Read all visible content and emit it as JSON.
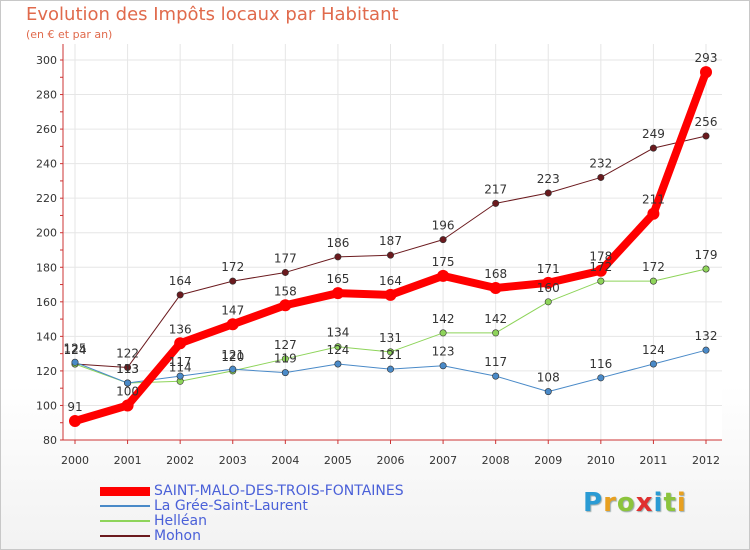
{
  "title": "Evolution des Impôts locaux par Habitant",
  "subtitle": "(en € et par an)",
  "logo": {
    "text": "Proxiti",
    "letter_colors": [
      "#2a9bd4",
      "#e8a020",
      "#8cc43c",
      "#e03030",
      "#2a9bd4",
      "#8cc43c",
      "#e8a020"
    ]
  },
  "chart_data": {
    "type": "line",
    "title": "Evolution des Impôts locaux par Habitant",
    "subtitle": "(en € et par an)",
    "x": [
      "2000",
      "2001",
      "2002",
      "2003",
      "2004",
      "2005",
      "2006",
      "2007",
      "2008",
      "2009",
      "2010",
      "2011",
      "2012"
    ],
    "ylim": [
      80,
      300
    ],
    "yticks": [
      80,
      100,
      120,
      140,
      160,
      180,
      200,
      220,
      240,
      260,
      280,
      300
    ],
    "grid": true,
    "legend_position": "bottom-left",
    "series": [
      {
        "name": "Mohon",
        "color": "#6b1a1e",
        "width": 1,
        "values": [
          124,
          122,
          164,
          172,
          177,
          186,
          187,
          196,
          217,
          223,
          232,
          249,
          256
        ]
      },
      {
        "name": "Helléan",
        "color": "#8ed45a",
        "width": 1,
        "values": [
          124,
          113,
          114,
          120,
          127,
          134,
          131,
          142,
          142,
          160,
          172,
          172,
          179
        ]
      },
      {
        "name": "La Grée-Saint-Laurent",
        "color": "#4a8ac8",
        "width": 1,
        "values": [
          125,
          113,
          117,
          121,
          119,
          124,
          121,
          123,
          117,
          108,
          116,
          124,
          132
        ]
      },
      {
        "name": "SAINT-MALO-DES-TROIS-FONTAINES",
        "color": "#ff0000",
        "width": 8,
        "values": [
          91,
          100,
          136,
          147,
          158,
          165,
          164,
          175,
          168,
          171,
          178,
          211,
          293
        ]
      }
    ]
  }
}
